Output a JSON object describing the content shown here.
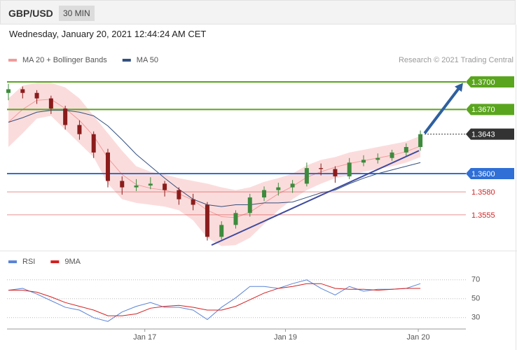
{
  "header": {
    "symbol": "GBP/USD",
    "timeframe": "30 MIN"
  },
  "timestamp": "Wednesday, January 20, 2021 12:44:24 AM CET",
  "chart_data": [
    {
      "type": "candlestick",
      "credit": "Research © 2021 Trading Central",
      "xlim": [
        -0.1,
        32.2
      ],
      "ylim": [
        1.3516,
        1.3713
      ],
      "up_color": "#3d8b3d",
      "down_color": "#8b1c1c",
      "open": [
        1.3688,
        1.3692,
        1.3688,
        1.3682,
        1.3671,
        1.3653,
        1.3643,
        1.3623,
        1.3592,
        1.3585,
        1.3587,
        1.3589,
        1.3582,
        1.3572,
        1.3566,
        1.3531,
        1.3544,
        1.3557,
        1.3574,
        1.3582,
        1.3585,
        1.3589,
        1.3606,
        1.3605,
        1.3597,
        1.3612,
        1.3615,
        1.3617,
        1.3623,
        1.3629
      ],
      "high": [
        1.3698,
        1.3695,
        1.3691,
        1.3685,
        1.3674,
        1.3658,
        1.3646,
        1.3627,
        1.3597,
        1.3594,
        1.3596,
        1.3592,
        1.3585,
        1.3578,
        1.3569,
        1.3548,
        1.356,
        1.3578,
        1.3586,
        1.359,
        1.3593,
        1.3612,
        1.3611,
        1.3608,
        1.3617,
        1.362,
        1.3622,
        1.3626,
        1.3633,
        1.3647
      ],
      "low": [
        1.368,
        1.3682,
        1.3676,
        1.3665,
        1.3648,
        1.3637,
        1.3617,
        1.3585,
        1.3577,
        1.3581,
        1.3583,
        1.3575,
        1.3566,
        1.356,
        1.3527,
        1.3528,
        1.354,
        1.3553,
        1.357,
        1.3576,
        1.3579,
        1.3586,
        1.3598,
        1.359,
        1.3594,
        1.3608,
        1.3611,
        1.3614,
        1.3619,
        1.3625
      ],
      "close": [
        1.3692,
        1.3688,
        1.3682,
        1.3671,
        1.3653,
        1.3643,
        1.3623,
        1.3592,
        1.3585,
        1.3587,
        1.3589,
        1.3582,
        1.3572,
        1.3566,
        1.3531,
        1.3544,
        1.3557,
        1.3574,
        1.3582,
        1.3585,
        1.3589,
        1.3606,
        1.3605,
        1.3597,
        1.3612,
        1.3615,
        1.3617,
        1.3623,
        1.3629,
        1.3643
      ],
      "bollinger": {
        "name": "MA 20 + Bollinger Bands",
        "color": "#f29b9b",
        "fill": "#fbdcdc",
        "upper": [
          1.3682,
          1.3696,
          1.3699,
          1.3699,
          1.3694,
          1.3682,
          1.3663,
          1.3644,
          1.3625,
          1.3608,
          1.3602,
          1.3599,
          1.3595,
          1.3592,
          1.3589,
          1.3585,
          1.3582,
          1.3585,
          1.3591,
          1.3595,
          1.36,
          1.3609,
          1.3615,
          1.3618,
          1.3623,
          1.3626,
          1.3629,
          1.3632,
          1.3635,
          1.3641
        ],
        "middle": [
          1.3656,
          1.367,
          1.368,
          1.3681,
          1.3671,
          1.3658,
          1.3641,
          1.3617,
          1.3599,
          1.3588,
          1.3584,
          1.3582,
          1.3578,
          1.3571,
          1.356,
          1.3553,
          1.3552,
          1.3558,
          1.3568,
          1.3578,
          1.3586,
          1.3596,
          1.3602,
          1.3607,
          1.3611,
          1.3614,
          1.3617,
          1.362,
          1.3624,
          1.363
        ],
        "lower": [
          1.3629,
          1.3644,
          1.366,
          1.3663,
          1.3648,
          1.3633,
          1.3618,
          1.3589,
          1.3572,
          1.3568,
          1.3566,
          1.3564,
          1.356,
          1.3549,
          1.353,
          1.3521,
          1.3522,
          1.353,
          1.3545,
          1.356,
          1.3572,
          1.3582,
          1.3589,
          1.3595,
          1.3598,
          1.3602,
          1.3605,
          1.3608,
          1.3612,
          1.3618
        ]
      },
      "ma50": {
        "name": "MA 50",
        "color": "#34507f",
        "values": [
          1.3656,
          1.3661,
          1.3667,
          1.3669,
          1.3669,
          1.3667,
          1.3663,
          1.3652,
          1.3637,
          1.3621,
          1.3608,
          1.3595,
          1.3583,
          1.3572,
          1.3566,
          1.3564,
          1.3566,
          1.3566,
          1.3568,
          1.3568,
          1.3569,
          1.3574,
          1.3579,
          1.3582,
          1.3589,
          1.3595,
          1.36,
          1.3604,
          1.3608,
          1.3612
        ]
      },
      "levels": [
        {
          "value": 1.37,
          "label": "1.3700",
          "color": "#5aa51e",
          "box": true,
          "line": "solid"
        },
        {
          "value": 1.367,
          "label": "1.3670",
          "color": "#5aa51e",
          "box": true,
          "line": "solid"
        },
        {
          "value": 1.3643,
          "label": "1.3643",
          "color": "#333333",
          "box": true,
          "line": "dotted"
        },
        {
          "value": 1.36,
          "label": "1.3600",
          "color": "#2f6fd6",
          "box": true,
          "line": "solid"
        },
        {
          "value": 1.358,
          "label": "1.3580",
          "color": "#d02525",
          "box": false,
          "line": "solid"
        },
        {
          "value": 1.3555,
          "label": "1.3555",
          "color": "#d02525",
          "box": false,
          "line": "solid"
        }
      ],
      "trendline": {
        "x": [
          14.3,
          28.9
        ],
        "y": [
          1.3522,
          1.3625
        ],
        "color": "#3d4a9e"
      },
      "arrow": {
        "x": [
          29.3,
          32.0
        ],
        "y": [
          1.3644,
          1.3699
        ],
        "color": "#2e5f9f"
      }
    },
    {
      "type": "line",
      "xlim": [
        -0.1,
        32.2
      ],
      "ylim": [
        18,
        98
      ],
      "yticks": [
        30,
        50,
        70
      ],
      "xticks": [
        {
          "value": 9.6,
          "label": "Jan 17"
        },
        {
          "value": 19.5,
          "label": "Jan 19"
        },
        {
          "value": 28.85,
          "label": "Jan 20"
        }
      ],
      "series": [
        {
          "name": "RSI",
          "color": "#5b84d6",
          "values": [
            59,
            61,
            55,
            48,
            41,
            38,
            30,
            26,
            36,
            42,
            46,
            41,
            41,
            38,
            28,
            41,
            51,
            63,
            63,
            61,
            66,
            70,
            61,
            54,
            63,
            58,
            60,
            60,
            61,
            66
          ]
        },
        {
          "name": "9MA",
          "color": "#d42020",
          "values": [
            59,
            59,
            57,
            52,
            46,
            42,
            38,
            32,
            32,
            34,
            40,
            42,
            43,
            41,
            38,
            38,
            42,
            49,
            56,
            61,
            63,
            66,
            66,
            61,
            60,
            60,
            59,
            60,
            61,
            61
          ]
        }
      ]
    }
  ]
}
